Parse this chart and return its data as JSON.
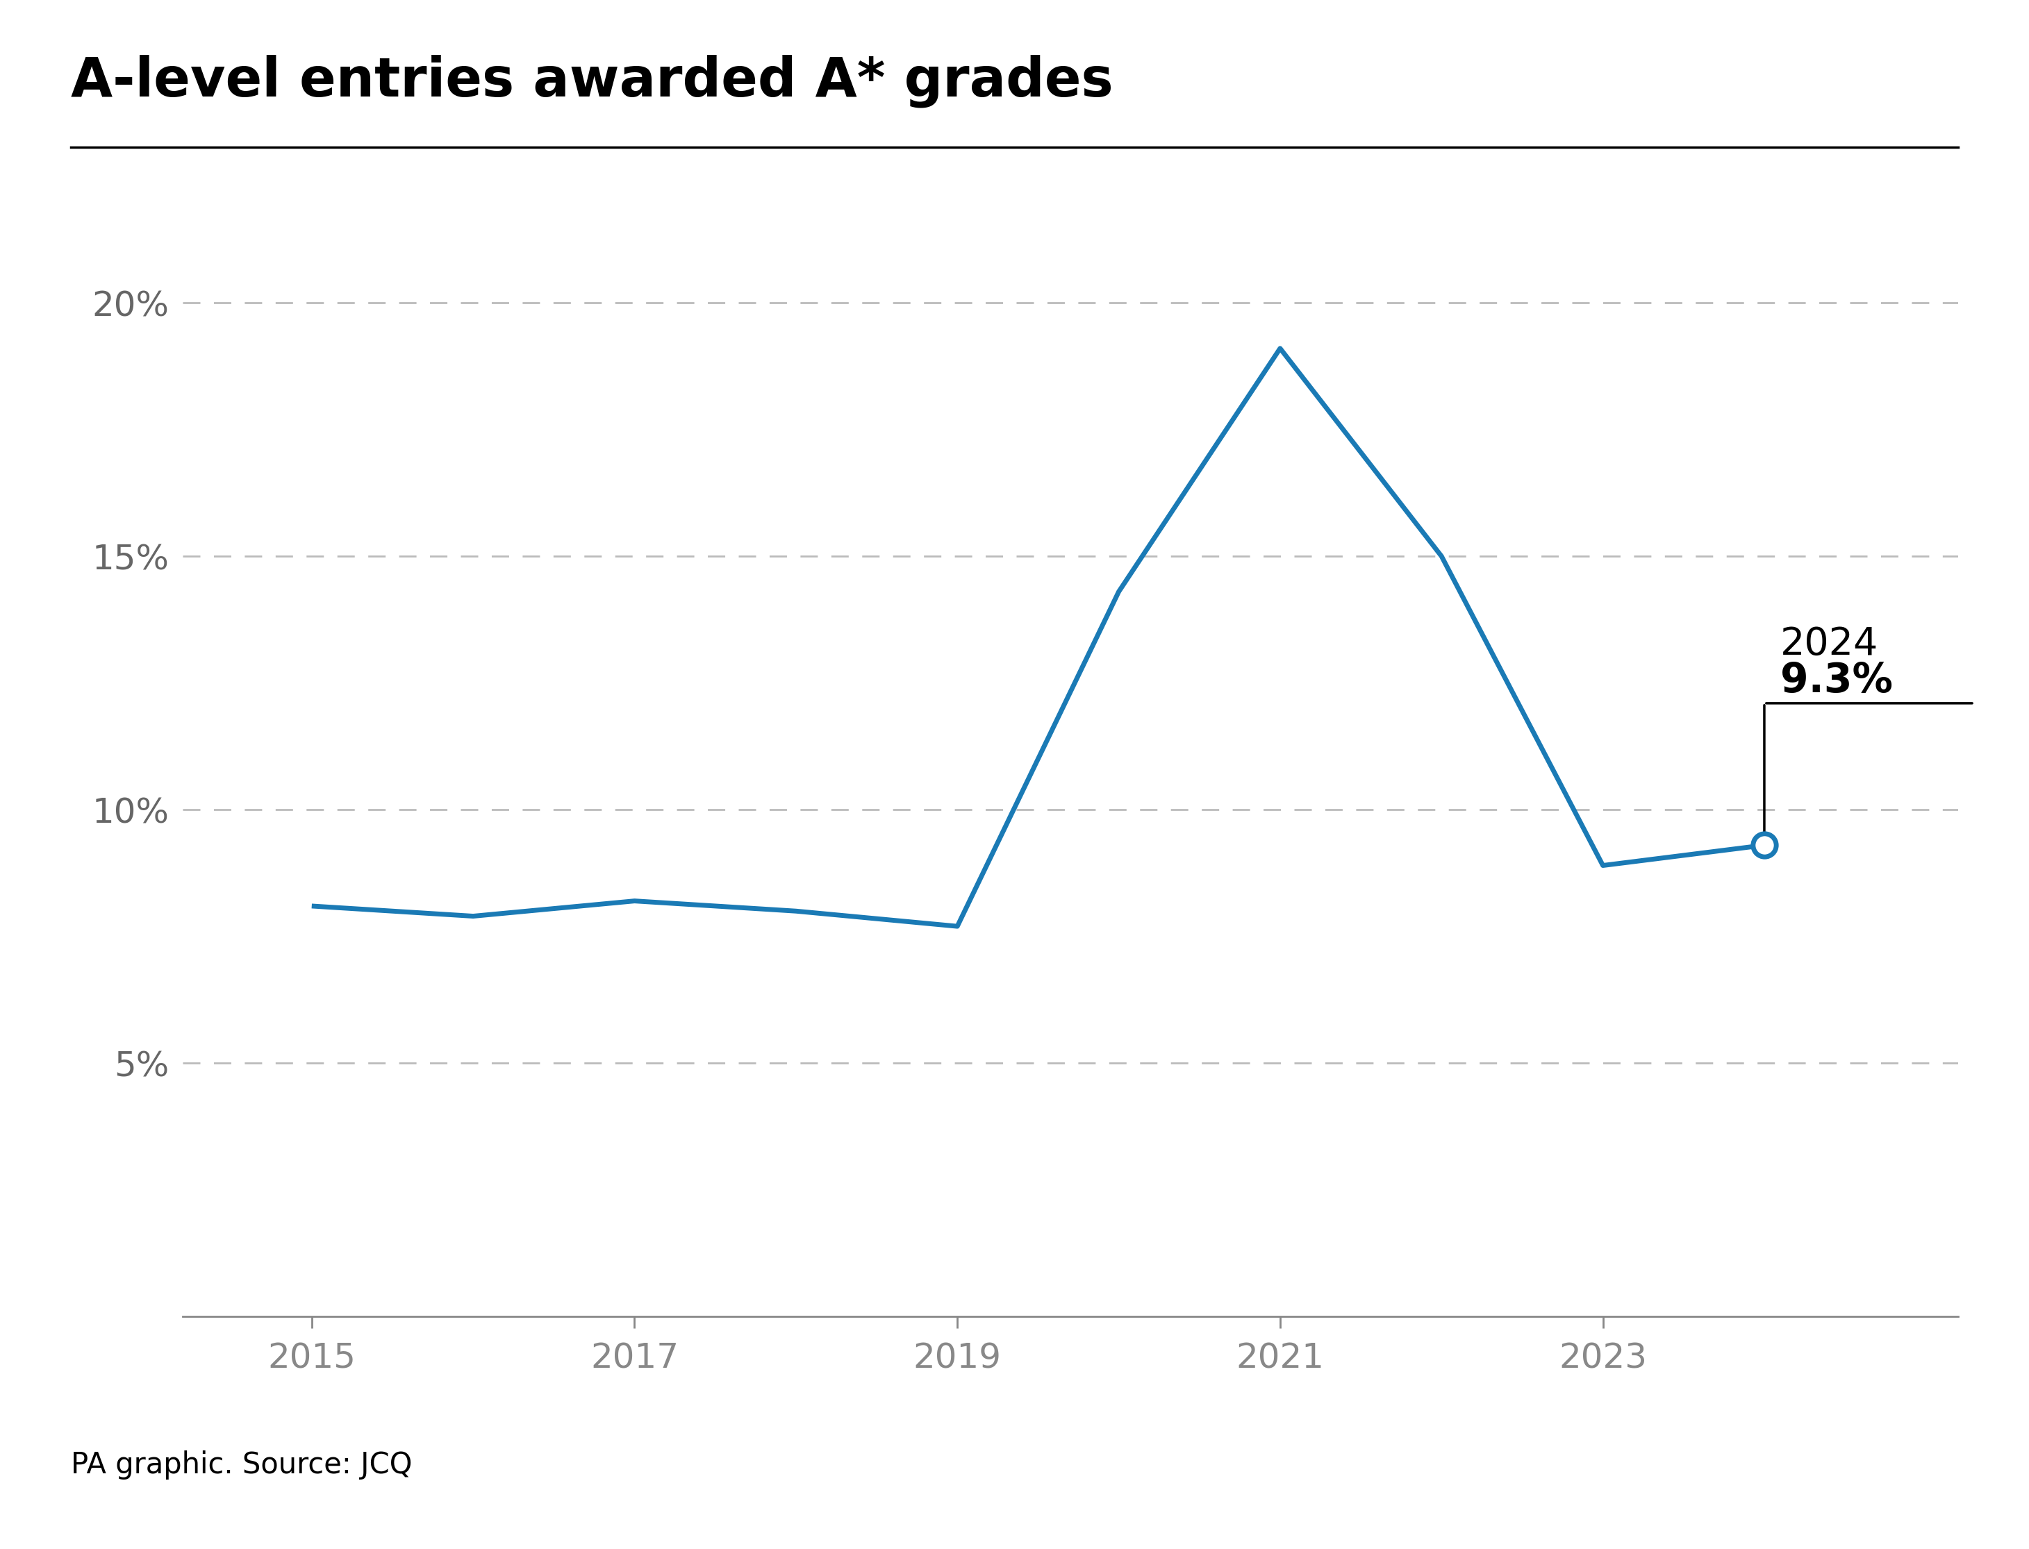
{
  "title": "A-level entries awarded A* grades",
  "years": [
    2015,
    2016,
    2017,
    2018,
    2019,
    2020,
    2021,
    2022,
    2023,
    2024
  ],
  "values": [
    8.1,
    7.9,
    8.2,
    8.0,
    7.7,
    14.3,
    19.1,
    15.0,
    8.9,
    9.3
  ],
  "line_color": "#1a7ab5",
  "line_width": 5.0,
  "highlight_year": 2024,
  "highlight_value": 9.3,
  "highlight_label_year": "2024",
  "highlight_label_value": "9.3%",
  "ylim": [
    0,
    22
  ],
  "yticks": [
    5,
    10,
    15,
    20
  ],
  "ytick_labels": [
    "5%",
    "10%",
    "15%",
    "20%"
  ],
  "xticks": [
    2015,
    2017,
    2019,
    2021,
    2023
  ],
  "source_text": "PA graphic. Source: JCQ",
  "background_color": "#ffffff",
  "grid_color": "#bbbbbb",
  "title_fontsize": 56,
  "tick_fontsize": 36,
  "annotation_year_fontsize": 40,
  "annotation_value_fontsize": 42,
  "source_fontsize": 30
}
